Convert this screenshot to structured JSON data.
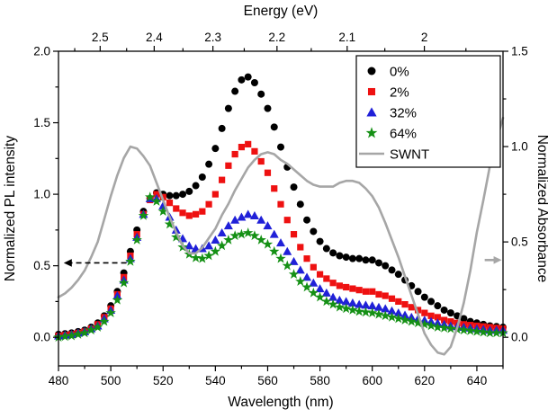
{
  "chart_data": {
    "type": "line",
    "title": "",
    "axes": {
      "top": {
        "label": "Energy (eV)",
        "tick_values": [
          2.5,
          2.4,
          2.3,
          2.2,
          2.1,
          2.0
        ],
        "tick_labels": [
          "2.5",
          "2.4",
          "2.3",
          "2.2",
          "2.1",
          "2"
        ],
        "minor_tick_values": [
          2.55,
          2.45,
          2.35,
          2.25,
          2.15,
          2.05,
          1.95
        ],
        "mapping": "wavelength_nm = 1239.84 / energy_eV"
      },
      "bottom": {
        "label": "Wavelength (nm)",
        "min": 480,
        "max": 650,
        "tick_values": [
          480,
          500,
          520,
          540,
          560,
          580,
          600,
          620,
          640
        ],
        "tick_labels": [
          "480",
          "500",
          "520",
          "540",
          "560",
          "580",
          "600",
          "620",
          "640"
        ],
        "minor_step": 10
      },
      "left": {
        "label": "Normalized PL intensity",
        "min": -0.2,
        "max": 2.0,
        "tick_values": [
          0,
          0.5,
          1,
          1.5,
          2
        ],
        "tick_labels": [
          "0.0",
          "0.5",
          "1.0",
          "1.5",
          "2.0"
        ],
        "minor_step": 0.25
      },
      "right": {
        "label": "Normalized Absorbance",
        "min": -0.15,
        "max": 1.5,
        "tick_values": [
          0,
          0.5,
          1,
          1.5
        ],
        "tick_labels": [
          "0.0",
          "0.5",
          "1.0",
          "1.5"
        ],
        "minor_step": 0.25
      }
    },
    "x_nm": [
      480,
      482.5,
      485,
      487.5,
      490,
      492.5,
      495,
      497.5,
      500,
      502.5,
      505,
      507.5,
      510,
      512.5,
      515,
      517.5,
      520,
      522.5,
      525,
      527.5,
      530,
      532.5,
      535,
      537.5,
      540,
      542.5,
      545,
      547.5,
      550,
      552.5,
      555,
      557.5,
      560,
      562.5,
      565,
      567.5,
      570,
      572.5,
      575,
      577.5,
      580,
      582.5,
      585,
      587.5,
      590,
      592.5,
      595,
      597.5,
      600,
      602.5,
      605,
      607.5,
      610,
      612.5,
      615,
      617.5,
      620,
      622.5,
      625,
      627.5,
      630,
      632.5,
      635,
      637.5,
      640,
      642.5,
      645,
      647.5,
      650
    ],
    "series": [
      {
        "name": "0%",
        "marker": "circle",
        "color": "#000000",
        "axis": "left",
        "y": [
          0.02,
          0.025,
          0.03,
          0.04,
          0.05,
          0.07,
          0.1,
          0.15,
          0.22,
          0.32,
          0.45,
          0.6,
          0.75,
          0.88,
          0.97,
          1.01,
          1.0,
          0.99,
          0.99,
          1.0,
          1.02,
          1.06,
          1.12,
          1.21,
          1.32,
          1.46,
          1.6,
          1.72,
          1.8,
          1.82,
          1.78,
          1.7,
          1.6,
          1.47,
          1.33,
          1.19,
          1.05,
          0.93,
          0.82,
          0.74,
          0.67,
          0.62,
          0.59,
          0.57,
          0.56,
          0.55,
          0.55,
          0.54,
          0.54,
          0.52,
          0.5,
          0.47,
          0.44,
          0.4,
          0.36,
          0.32,
          0.28,
          0.25,
          0.22,
          0.19,
          0.17,
          0.15,
          0.13,
          0.11,
          0.1,
          0.09,
          0.08,
          0.075,
          0.07
        ]
      },
      {
        "name": "2%",
        "marker": "square",
        "color": "#ee1111",
        "axis": "left",
        "y": [
          0.01,
          0.015,
          0.02,
          0.03,
          0.04,
          0.06,
          0.09,
          0.14,
          0.2,
          0.3,
          0.42,
          0.57,
          0.72,
          0.86,
          0.96,
          1.0,
          0.98,
          0.94,
          0.9,
          0.87,
          0.85,
          0.86,
          0.88,
          0.93,
          1.0,
          1.1,
          1.2,
          1.28,
          1.33,
          1.35,
          1.3,
          1.23,
          1.15,
          1.04,
          0.93,
          0.82,
          0.72,
          0.63,
          0.55,
          0.49,
          0.44,
          0.41,
          0.38,
          0.36,
          0.35,
          0.34,
          0.33,
          0.32,
          0.32,
          0.3,
          0.29,
          0.27,
          0.25,
          0.23,
          0.21,
          0.19,
          0.17,
          0.15,
          0.14,
          0.12,
          0.11,
          0.1,
          0.09,
          0.085,
          0.08,
          0.075,
          0.07,
          0.065,
          0.06
        ]
      },
      {
        "name": "32%",
        "marker": "triangle",
        "color": "#2020d8",
        "axis": "left",
        "y": [
          0.01,
          0.015,
          0.02,
          0.03,
          0.04,
          0.06,
          0.08,
          0.13,
          0.19,
          0.29,
          0.4,
          0.55,
          0.7,
          0.86,
          0.97,
          0.97,
          0.92,
          0.84,
          0.75,
          0.69,
          0.64,
          0.62,
          0.62,
          0.64,
          0.68,
          0.73,
          0.78,
          0.82,
          0.84,
          0.86,
          0.85,
          0.82,
          0.78,
          0.72,
          0.66,
          0.6,
          0.53,
          0.47,
          0.42,
          0.38,
          0.34,
          0.31,
          0.28,
          0.26,
          0.25,
          0.24,
          0.23,
          0.225,
          0.22,
          0.21,
          0.2,
          0.185,
          0.17,
          0.155,
          0.14,
          0.13,
          0.12,
          0.11,
          0.1,
          0.09,
          0.08,
          0.075,
          0.07,
          0.065,
          0.06,
          0.055,
          0.05,
          0.05,
          0.05
        ]
      },
      {
        "name": "64%",
        "marker": "star",
        "color": "#159015",
        "axis": "left",
        "y": [
          0.0,
          0.005,
          0.01,
          0.02,
          0.03,
          0.05,
          0.07,
          0.11,
          0.17,
          0.26,
          0.38,
          0.53,
          0.68,
          0.85,
          0.98,
          0.95,
          0.88,
          0.79,
          0.7,
          0.63,
          0.58,
          0.555,
          0.55,
          0.57,
          0.6,
          0.64,
          0.68,
          0.71,
          0.72,
          0.73,
          0.71,
          0.68,
          0.65,
          0.6,
          0.55,
          0.5,
          0.44,
          0.39,
          0.35,
          0.31,
          0.28,
          0.25,
          0.23,
          0.21,
          0.2,
          0.19,
          0.18,
          0.175,
          0.17,
          0.16,
          0.15,
          0.14,
          0.13,
          0.12,
          0.11,
          0.1,
          0.09,
          0.08,
          0.07,
          0.065,
          0.06,
          0.055,
          0.05,
          0.045,
          0.04,
          0.035,
          0.03,
          0.03,
          0.03
        ]
      },
      {
        "name": "SWNT",
        "marker": "line",
        "color": "#a6a6a6",
        "axis": "right",
        "y": [
          0.21,
          0.23,
          0.26,
          0.3,
          0.35,
          0.42,
          0.5,
          0.62,
          0.74,
          0.85,
          0.94,
          1.0,
          0.99,
          0.95,
          0.9,
          0.81,
          0.72,
          0.63,
          0.55,
          0.48,
          0.44,
          0.44,
          0.47,
          0.52,
          0.57,
          0.64,
          0.7,
          0.77,
          0.83,
          0.89,
          0.93,
          0.96,
          0.97,
          0.96,
          0.93,
          0.91,
          0.88,
          0.85,
          0.82,
          0.8,
          0.79,
          0.79,
          0.79,
          0.81,
          0.82,
          0.82,
          0.81,
          0.78,
          0.74,
          0.68,
          0.6,
          0.51,
          0.42,
          0.32,
          0.22,
          0.12,
          0.02,
          -0.04,
          -0.08,
          -0.09,
          -0.05,
          0.05,
          0.18,
          0.35,
          0.55,
          0.72,
          0.9,
          1.03,
          1.15
        ]
      }
    ],
    "legend": {
      "position": "top-right",
      "border": true,
      "entries": [
        "0%",
        "2%",
        "32%",
        "64%",
        "SWNT"
      ]
    },
    "annotations": [
      {
        "id": "pl-axis-arrow",
        "shape": "arrow",
        "direction": "left",
        "line_style": "dashed",
        "color": "#000000",
        "x_start": 506,
        "x_end": 482,
        "y_value": 0.52,
        "axis": "left"
      },
      {
        "id": "abs-axis-arrow",
        "shape": "arrow",
        "direction": "right",
        "line_style": "solid",
        "color": "#a6a6a6",
        "x_start": 643,
        "x_end": 649.5,
        "y_value": 0.54,
        "axis": "left"
      }
    ]
  }
}
